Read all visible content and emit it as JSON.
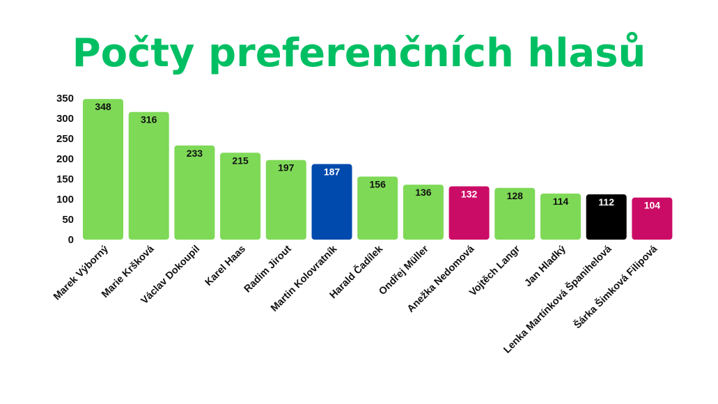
{
  "chart_data": {
    "type": "bar",
    "title": "Počty preferenčních hlasů",
    "xlabel": "",
    "ylabel": "",
    "ylim": [
      0,
      350
    ],
    "yticks": [
      0,
      50,
      100,
      150,
      200,
      250,
      300,
      350
    ],
    "grid": false,
    "legend": "none",
    "categories": [
      "Marek Výborný",
      "Marie Kršková",
      "Václav Dokoupil",
      "Karel Haas",
      "Radim Jirout",
      "Martin Kolovratník",
      "Harald Čadílek",
      "Ondřej Müller",
      "Anežka Nedomová",
      "Vojtěch Langr",
      "Jan Hladký",
      "Lenka Martínková Španihelová",
      "Šárka Šimková Filipová"
    ],
    "values": [
      348,
      316,
      233,
      215,
      197,
      187,
      156,
      136,
      132,
      128,
      114,
      112,
      104
    ],
    "colors": [
      "#7ed957",
      "#7ed957",
      "#7ed957",
      "#7ed957",
      "#7ed957",
      "#004aad",
      "#7ed957",
      "#7ed957",
      "#cb0c66",
      "#7ed957",
      "#7ed957",
      "#000000",
      "#cb0c66"
    ],
    "label_colors": [
      "#111111",
      "#111111",
      "#111111",
      "#111111",
      "#111111",
      "#ffffff",
      "#111111",
      "#111111",
      "#ffffff",
      "#111111",
      "#111111",
      "#ffffff",
      "#ffffff"
    ],
    "title_color": "#00bf63"
  }
}
